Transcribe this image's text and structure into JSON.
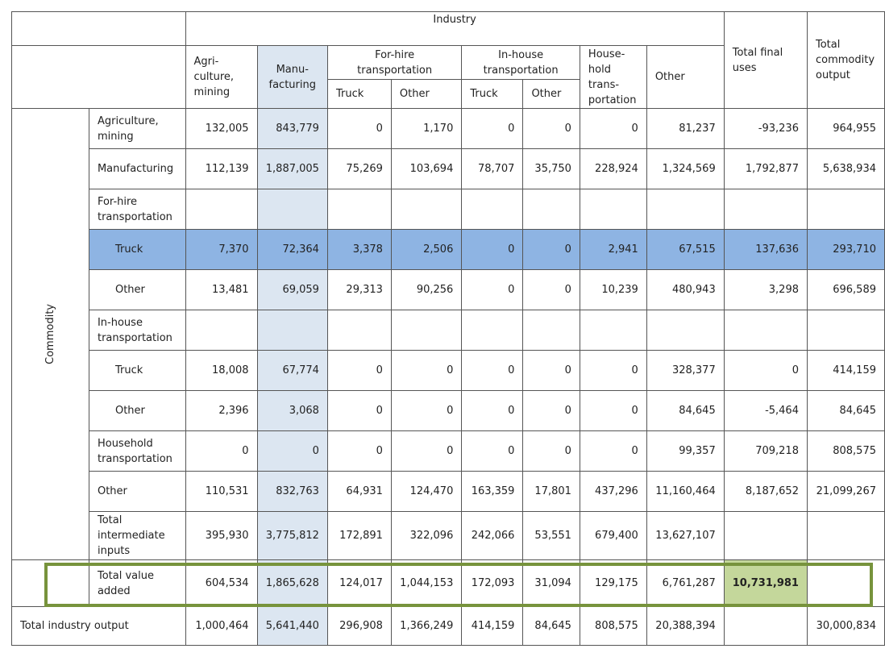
{
  "header": {
    "industry": "Industry",
    "total_final_uses": "Total final uses",
    "total_commodity_output": "Total commodity output",
    "agri": "Agri-culture, mining",
    "manu": "Manu-facturing",
    "for_hire": "For-hire transportation",
    "in_house": "In-house transportation",
    "household": "House-hold trans-portation",
    "other": "Other",
    "truck": "Truck",
    "other_sub": "Other"
  },
  "side_label": "Commodity",
  "rows": {
    "agri": {
      "label": "Agriculture, mining",
      "values": [
        "132,005",
        "843,779",
        "0",
        "1,170",
        "0",
        "0",
        "0",
        "81,237",
        "-93,236",
        "964,955"
      ]
    },
    "manu": {
      "label": "Manufacturing",
      "values": [
        "112,139",
        "1,887,005",
        "75,269",
        "103,694",
        "78,707",
        "35,750",
        "228,924",
        "1,324,569",
        "1,792,877",
        "5,638,934"
      ]
    },
    "forhire": {
      "label": "For-hire transportation"
    },
    "fh_truck": {
      "label": "Truck",
      "values": [
        "7,370",
        "72,364",
        "3,378",
        "2,506",
        "0",
        "0",
        "2,941",
        "67,515",
        "137,636",
        "293,710"
      ]
    },
    "fh_other": {
      "label": "Other",
      "values": [
        "13,481",
        "69,059",
        "29,313",
        "90,256",
        "0",
        "0",
        "10,239",
        "480,943",
        "3,298",
        "696,589"
      ]
    },
    "inhouse": {
      "label": "In-house transportation"
    },
    "ih_truck": {
      "label": "Truck",
      "values": [
        "18,008",
        "67,774",
        "0",
        "0",
        "0",
        "0",
        "0",
        "328,377",
        "0",
        "414,159"
      ]
    },
    "ih_other": {
      "label": "Other",
      "values": [
        "2,396",
        "3,068",
        "0",
        "0",
        "0",
        "0",
        "0",
        "84,645",
        "-5,464",
        "84,645"
      ]
    },
    "household": {
      "label": "Household transportation",
      "values": [
        "0",
        "0",
        "0",
        "0",
        "0",
        "0",
        "0",
        "99,357",
        "709,218",
        "808,575"
      ]
    },
    "other": {
      "label": "Other",
      "values": [
        "110,531",
        "832,763",
        "64,931",
        "124,470",
        "163,359",
        "17,801",
        "437,296",
        "11,160,464",
        "8,187,652",
        "21,099,267"
      ]
    },
    "tii": {
      "label": "Total intermediate inputs",
      "values": [
        "395,930",
        "3,775,812",
        "172,891",
        "322,096",
        "242,066",
        "53,551",
        "679,400",
        "13,627,107"
      ]
    },
    "tva": {
      "label": "Total value added",
      "values": [
        "604,534",
        "1,865,628",
        "124,017",
        "1,044,153",
        "172,093",
        "31,094",
        "129,175",
        "6,761,287",
        "10,731,981"
      ]
    },
    "tio": {
      "label": "Total industry output",
      "values": [
        "1,000,464",
        "5,641,440",
        "296,908",
        "1,366,249",
        "414,159",
        "84,645",
        "808,575",
        "20,388,394",
        "",
        "30,000,834"
      ]
    }
  },
  "colors": {
    "manufacturing_column": "#dce6f1",
    "truck_row": "#8eb4e3",
    "value_added_box": "#77933c",
    "value_added_cell": "#c4d79b"
  }
}
